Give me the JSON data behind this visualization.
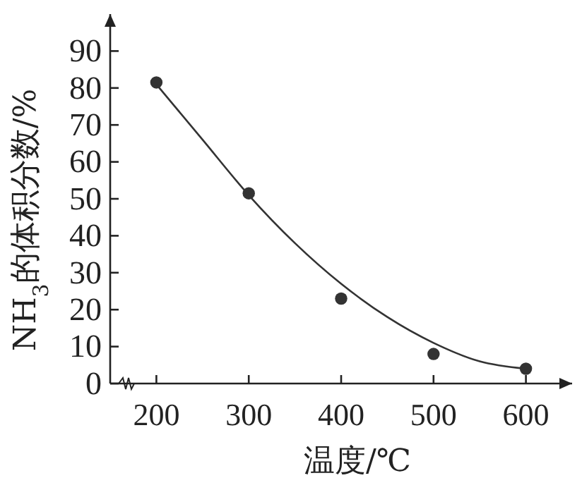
{
  "chart_data": {
    "type": "scatter",
    "xlabel": "温度/℃",
    "ylabel": "NH$_{3}$的体积分数/%",
    "xlim": [
      150,
      650
    ],
    "ylim": [
      0,
      100
    ],
    "xticks": [
      200,
      300,
      400,
      500,
      600
    ],
    "yticks": [
      0,
      10,
      20,
      30,
      40,
      50,
      60,
      70,
      80,
      90
    ],
    "grid": false,
    "x": [
      200,
      300,
      400,
      500,
      600
    ],
    "series": [
      {
        "marker": "circle",
        "color": "#333333",
        "values": [
          81.5,
          51.5,
          23,
          8,
          4
        ]
      },
      {
        "type": "line",
        "marker": "none",
        "line_style": "solid",
        "color": "#333333",
        "x": [
          200,
          250,
          300,
          350,
          400,
          450,
          500,
          550,
          600
        ],
        "values": [
          81,
          66,
          51,
          38,
          27,
          18,
          11,
          6,
          4
        ]
      }
    ]
  }
}
